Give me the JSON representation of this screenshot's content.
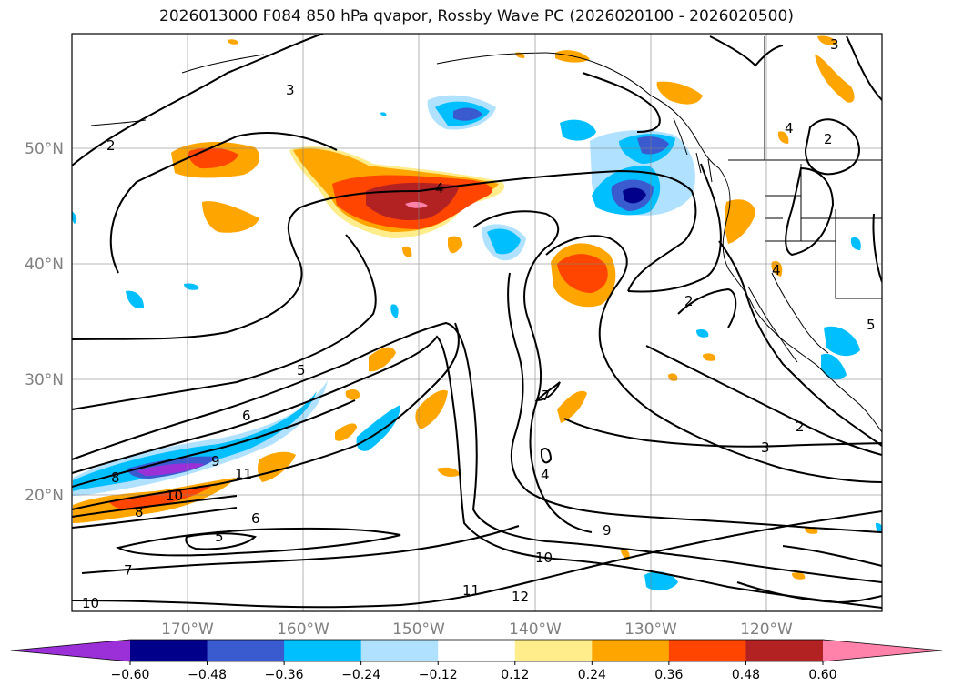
{
  "title": "2026013000 F084 850 hPa qvapor, Rossby Wave PC (2026020100 - 2026020500)",
  "lat_labels": [
    "50°N",
    "40°N",
    "30°N",
    "20°N"
  ],
  "lon_labels": [
    "170°W",
    "160°W",
    "150°W",
    "140°W",
    "130°W",
    "120°W"
  ],
  "colorbar": {
    "levels": [
      -0.72,
      -0.6,
      -0.48,
      -0.36,
      -0.24,
      -0.12,
      0.12,
      0.24,
      0.36,
      0.48,
      0.6,
      0.72
    ],
    "tick_labels": [
      "−0.60",
      "−0.48",
      "−0.36",
      "−0.24",
      "−0.12",
      "0.12",
      "0.24",
      "0.36",
      "0.48",
      "0.60"
    ],
    "colors": [
      "#9b30d9",
      "#00008b",
      "#3a5bd0",
      "#00bfff",
      "#b0e2ff",
      "#ffffff",
      "#ffec8b",
      "#ffa500",
      "#ff4500",
      "#b22222",
      "#ff82ab"
    ],
    "extend": "both"
  },
  "contour_labels": [
    "2",
    "3",
    "4",
    "4",
    "4",
    "5",
    "6",
    "7",
    "8",
    "9",
    "10",
    "11",
    "12",
    "2",
    "3",
    "2",
    "5",
    "6",
    "7",
    "8",
    "9",
    "10",
    "11",
    "10",
    "3",
    "2",
    "4",
    "5"
  ]
}
